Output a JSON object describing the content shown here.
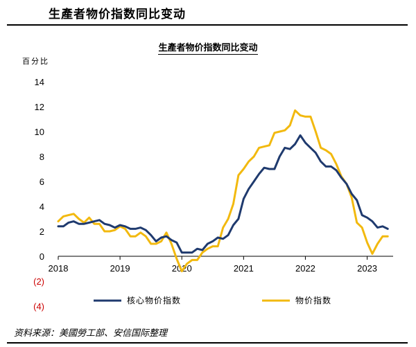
{
  "header": {
    "title": "生產者物价指数同比变动"
  },
  "source": "资料来源：美國勞工部、安信国际整理",
  "chart_data": {
    "type": "line",
    "title": "生產者物价指数同比变动",
    "ylabel": "百分比",
    "ylim": [
      -4,
      14
    ],
    "y_ticks": [
      14,
      12,
      10,
      8,
      6,
      4,
      2,
      0,
      -2,
      -4
    ],
    "y_tick_labels": [
      "14",
      "12",
      "10",
      "8",
      "6",
      "4",
      "2",
      "0",
      "(2)",
      "(4)"
    ],
    "x_tick_labels": [
      "2018",
      "2019",
      "2020",
      "2021",
      "2022",
      "2023"
    ],
    "x_range": [
      2018.0,
      2023.42
    ],
    "grid": false,
    "legend_position": "bottom",
    "series": [
      {
        "name": "核心物价指数",
        "color": "#1f3a6e",
        "x": [
          2018.0,
          2018.083,
          2018.167,
          2018.25,
          2018.333,
          2018.417,
          2018.5,
          2018.583,
          2018.667,
          2018.75,
          2018.833,
          2018.917,
          2019.0,
          2019.083,
          2019.167,
          2019.25,
          2019.333,
          2019.417,
          2019.5,
          2019.583,
          2019.667,
          2019.75,
          2019.833,
          2019.917,
          2020.0,
          2020.083,
          2020.167,
          2020.25,
          2020.333,
          2020.417,
          2020.5,
          2020.583,
          2020.667,
          2020.75,
          2020.833,
          2020.917,
          2021.0,
          2021.083,
          2021.167,
          2021.25,
          2021.333,
          2021.417,
          2021.5,
          2021.583,
          2021.667,
          2021.75,
          2021.833,
          2021.917,
          2022.0,
          2022.083,
          2022.167,
          2022.25,
          2022.333,
          2022.417,
          2022.5,
          2022.583,
          2022.667,
          2022.75,
          2022.833,
          2022.917,
          2023.0,
          2023.083,
          2023.167,
          2023.25,
          2023.333
        ],
        "values": [
          2.4,
          2.4,
          2.7,
          2.8,
          2.6,
          2.6,
          2.7,
          2.8,
          2.9,
          2.6,
          2.5,
          2.3,
          2.5,
          2.4,
          2.2,
          2.2,
          2.3,
          2.1,
          1.7,
          1.2,
          1.5,
          1.6,
          1.3,
          1.1,
          0.3,
          0.3,
          0.3,
          0.6,
          0.5,
          1.0,
          1.2,
          1.5,
          1.4,
          1.7,
          2.5,
          3.0,
          4.6,
          5.4,
          6.0,
          6.6,
          7.1,
          7.0,
          7.0,
          8.0,
          8.7,
          8.6,
          9.0,
          9.7,
          9.1,
          8.7,
          8.3,
          7.6,
          7.2,
          7.2,
          6.9,
          6.3,
          5.8,
          5.0,
          4.5,
          3.3,
          3.1,
          2.8,
          2.3,
          2.4,
          2.2
        ]
      },
      {
        "name": "物价指数",
        "color": "#f2b90f",
        "x": [
          2018.0,
          2018.083,
          2018.167,
          2018.25,
          2018.333,
          2018.417,
          2018.5,
          2018.583,
          2018.667,
          2018.75,
          2018.833,
          2018.917,
          2019.0,
          2019.083,
          2019.167,
          2019.25,
          2019.333,
          2019.417,
          2019.5,
          2019.583,
          2019.667,
          2019.75,
          2019.833,
          2019.917,
          2020.0,
          2020.083,
          2020.167,
          2020.25,
          2020.333,
          2020.417,
          2020.5,
          2020.583,
          2020.667,
          2020.75,
          2020.833,
          2020.917,
          2021.0,
          2021.083,
          2021.167,
          2021.25,
          2021.333,
          2021.417,
          2021.5,
          2021.583,
          2021.667,
          2021.75,
          2021.833,
          2021.917,
          2022.0,
          2022.083,
          2022.167,
          2022.25,
          2022.333,
          2022.417,
          2022.5,
          2022.583,
          2022.667,
          2022.75,
          2022.833,
          2022.917,
          2023.0,
          2023.083,
          2023.167,
          2023.25,
          2023.333
        ],
        "values": [
          2.8,
          3.2,
          3.3,
          3.4,
          3.0,
          2.7,
          3.1,
          2.6,
          2.6,
          2.0,
          2.0,
          2.1,
          2.4,
          2.2,
          1.6,
          1.6,
          1.9,
          1.6,
          1.0,
          1.0,
          1.2,
          1.9,
          1.0,
          -0.2,
          -1.2,
          -0.6,
          -0.3,
          -0.3,
          0.3,
          0.6,
          0.8,
          0.8,
          2.3,
          3.0,
          4.2,
          6.5,
          7.0,
          7.6,
          8.0,
          8.7,
          8.8,
          8.9,
          9.9,
          10.0,
          10.1,
          10.5,
          11.7,
          11.3,
          11.2,
          11.2,
          10.0,
          8.7,
          8.5,
          8.2,
          7.4,
          6.4,
          5.8,
          4.7,
          2.7,
          2.3,
          1.1,
          0.2,
          1.0,
          1.6,
          1.6
        ]
      }
    ]
  }
}
